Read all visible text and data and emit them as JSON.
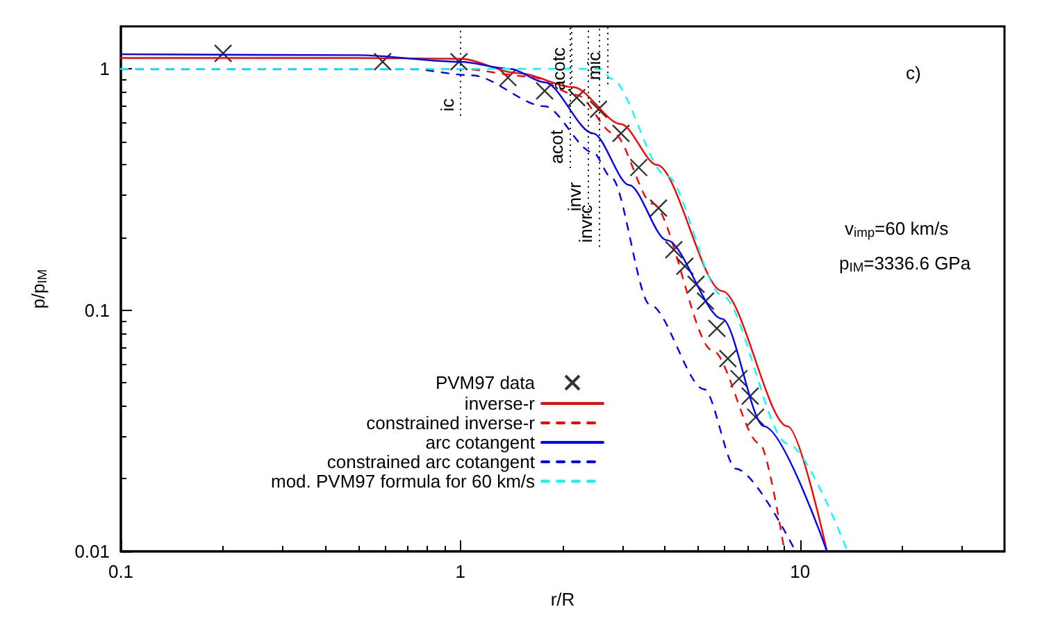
{
  "chart_data": {
    "type": "line",
    "xlabel": "r/R",
    "ylabel": "p/p$_{IM}$",
    "log": "xy",
    "xlim": [
      0.1,
      40
    ],
    "ylim": [
      0.01,
      1.5
    ],
    "xticks": [
      0.1,
      1,
      10
    ],
    "yticks": [
      0.01,
      0.1,
      1
    ],
    "grid": false,
    "legend": "bottom left",
    "annotations": [
      "c)",
      "v$_{imp}$=60 km/s",
      "p$_{IM}$=3336.6 GPa"
    ],
    "ref_lines": [
      {
        "axis": "x",
        "value": 1.0,
        "label": "ic",
        "line_style": "dotted",
        "color": "#000000"
      },
      {
        "axis": "x",
        "value": 2.13,
        "label": "acotc",
        "line_style": "dotted",
        "color": "#000000"
      },
      {
        "axis": "x",
        "value": 2.1,
        "label": "acot",
        "line_style": "dotted",
        "color": "#000000"
      },
      {
        "axis": "x",
        "value": 2.37,
        "label": "invr",
        "line_style": "dotted",
        "color": "#000000"
      },
      {
        "axis": "x",
        "value": 2.55,
        "label": "invrc",
        "line_style": "dotted",
        "color": "#000000"
      },
      {
        "axis": "x",
        "value": 2.7,
        "label": "mic",
        "line_style": "dotted",
        "color": "#000000"
      }
    ],
    "series": [
      {
        "name": "PVM97 data",
        "type": "scatter",
        "marker": "cross",
        "color": "#000000",
        "x": [
          0.2,
          0.59,
          0.99,
          1.38,
          1.77,
          2.2,
          2.55,
          2.97,
          3.35,
          3.83,
          4.25,
          4.58,
          4.94,
          5.27,
          5.69,
          6.13,
          6.61,
          7.13,
          7.4
        ],
        "values": [
          1.16,
          1.07,
          1.07,
          0.92,
          0.81,
          0.76,
          0.68,
          0.54,
          0.39,
          0.265,
          0.178,
          0.152,
          0.128,
          0.109,
          0.084,
          0.063,
          0.052,
          0.044,
          0.036
        ]
      },
      {
        "name": "inverse-r",
        "marker": "none",
        "line_style": "solid",
        "color": "#ff0000",
        "x": [
          0.1,
          0.5,
          1,
          1.48,
          2.15,
          2.97,
          3.79,
          5.9,
          9.19,
          12.0
        ],
        "values": [
          1.11,
          1.11,
          1.1,
          0.96,
          0.84,
          0.59,
          0.4,
          0.12,
          0.033,
          0.01
        ]
      },
      {
        "name": "constrained inverse-r",
        "marker": "none",
        "line_style": "dashed",
        "color": "#ff0000",
        "x": [
          0.1,
          1,
          1.6,
          2.2,
          2.83,
          3.68,
          5.53,
          7.6,
          9.0
        ],
        "values": [
          1.0,
          1.0,
          0.93,
          0.78,
          0.54,
          0.276,
          0.068,
          0.028,
          0.01
        ]
      },
      {
        "name": "arc cotangent",
        "marker": "none",
        "line_style": "solid",
        "color": "#0000ff",
        "x": [
          0.1,
          0.5,
          1,
          1.4,
          1.77,
          2.46,
          3.14,
          4.05,
          5.9,
          7.83,
          12.0
        ],
        "values": [
          1.15,
          1.14,
          1.07,
          1.0,
          0.88,
          0.54,
          0.33,
          0.195,
          0.092,
          0.033,
          0.01
        ]
      },
      {
        "name": "constrained arc cotangent",
        "marker": "none",
        "line_style": "dashed",
        "color": "#0000ff",
        "x": [
          0.1,
          0.7,
          1.08,
          1.77,
          2.46,
          2.78,
          3.62,
          5.22,
          6.48,
          9.7
        ],
        "values": [
          1.0,
          1.0,
          0.94,
          0.7,
          0.45,
          0.355,
          0.105,
          0.047,
          0.022,
          0.01
        ]
      },
      {
        "name": "mod. PVM97 formula for 60 km/s",
        "marker": "none",
        "line_style": "dashed",
        "color": "#00ffff",
        "x": [
          0.1,
          2.6,
          2.78,
          4.05,
          5.9,
          9.19,
          13.8
        ],
        "values": [
          1.0,
          1.0,
          0.91,
          0.36,
          0.115,
          0.028,
          0.01
        ]
      }
    ]
  }
}
